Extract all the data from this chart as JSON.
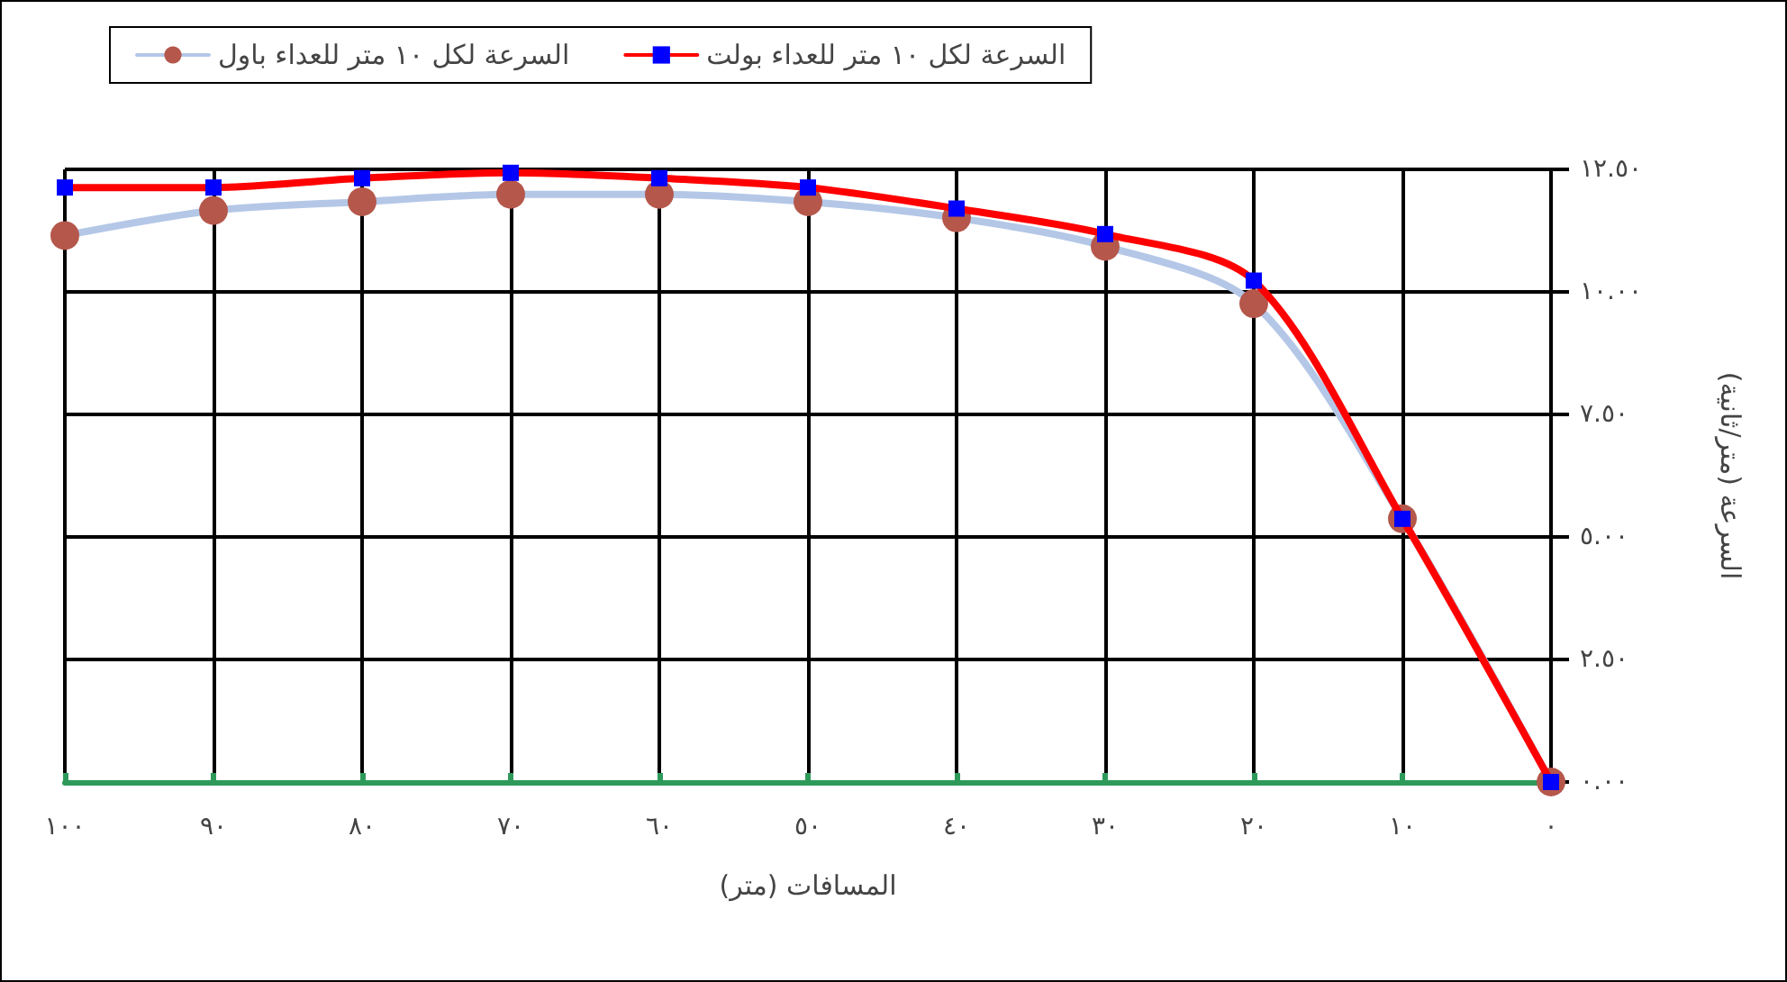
{
  "chart_data": {
    "type": "line",
    "xlabel": "المسافات (متر)",
    "ylabel": "السرعة (متر/ثانية)",
    "x": [
      100,
      90,
      80,
      70,
      60,
      50,
      40,
      30,
      20,
      10,
      0
    ],
    "series": [
      {
        "name": "السرعة لكل ١٠ متر للعداء بولت",
        "color": "#ff0000",
        "marker": "square",
        "colors": [
          "#0000ff",
          "#0000ff",
          "#0000ff",
          "#0000ff",
          "#0000ff",
          "#0000ff",
          "#0000ff",
          "#0000ff",
          "#0000ff",
          "#0000ff",
          "#0000ff"
        ],
        "values": [
          12.13,
          12.13,
          12.32,
          12.43,
          12.32,
          12.13,
          11.7,
          11.18,
          10.23,
          5.37,
          0
        ]
      },
      {
        "name": "السرعة لكل ١٠ متر للعداء باول",
        "color": "#b4c7e7",
        "marker": "circle",
        "colors": [
          "#b5574b",
          "#b5574b",
          "#b5574b",
          "#b5574b",
          "#b5574b",
          "#b5574b",
          "#b5574b",
          "#b5574b",
          "#b5574b",
          "#b5574b",
          "#b5574b"
        ],
        "values": [
          11.15,
          11.66,
          11.84,
          11.99,
          11.99,
          11.84,
          11.51,
          10.93,
          9.76,
          5.37,
          0
        ]
      }
    ],
    "xlim": [
      100,
      0
    ],
    "xticks": [
      {
        "value": 100,
        "label": "١٠٠"
      },
      {
        "value": 90,
        "label": "٩٠"
      },
      {
        "value": 80,
        "label": "٨٠"
      },
      {
        "value": 70,
        "label": "٧٠"
      },
      {
        "value": 60,
        "label": "٦٠"
      },
      {
        "value": 50,
        "label": "٥٠"
      },
      {
        "value": 40,
        "label": "٤٠"
      },
      {
        "value": 30,
        "label": "٣٠"
      },
      {
        "value": 20,
        "label": "٢٠"
      },
      {
        "value": 10,
        "label": "١٠"
      },
      {
        "value": 0,
        "label": "٠"
      }
    ],
    "ylim": [
      0,
      12.5
    ],
    "yticks": [
      {
        "value": 0,
        "label": "٠.٠٠"
      },
      {
        "value": 2.5,
        "label": "٢.٥٠"
      },
      {
        "value": 5,
        "label": "٥.٠٠"
      },
      {
        "value": 7.5,
        "label": "٧.٥٠"
      },
      {
        "value": 10,
        "label": "١٠.٠٠"
      },
      {
        "value": 12.5,
        "label": "١٢.٥٠"
      }
    ],
    "grid": true,
    "legend": "top",
    "line_style": "solid"
  }
}
